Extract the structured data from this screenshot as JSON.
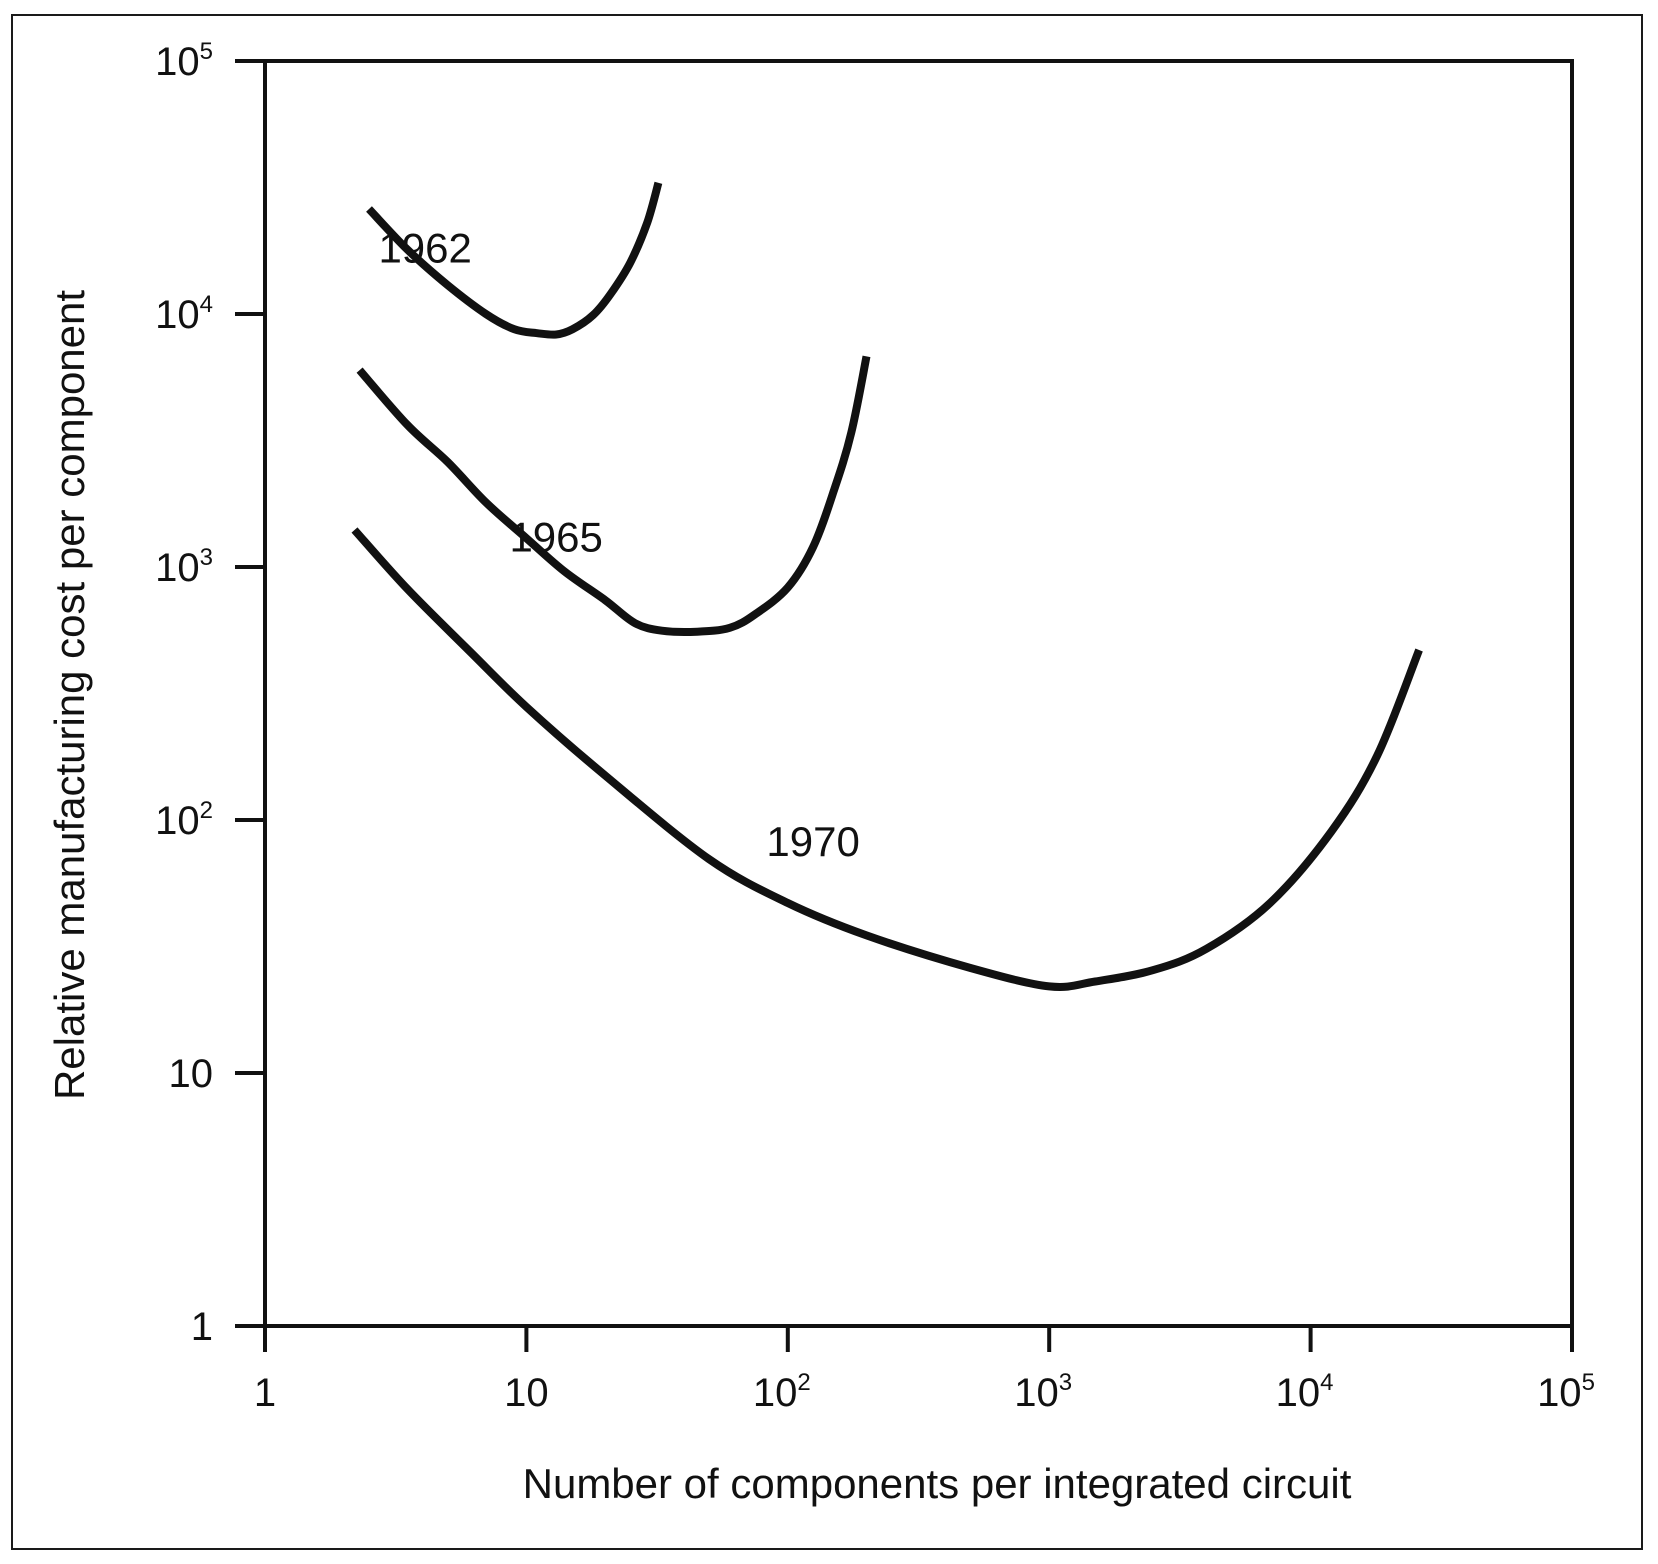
{
  "chart_data": {
    "type": "line",
    "title": "",
    "xlabel": "Number of components per integrated circuit",
    "ylabel": "Relative manufacturing cost per component",
    "x_scale": "log",
    "y_scale": "log",
    "xlim": [
      1,
      100000
    ],
    "ylim": [
      1,
      100000
    ],
    "grid": false,
    "x_ticks": [
      {
        "value": 1,
        "base": "1",
        "sup": ""
      },
      {
        "value": 10,
        "base": "10",
        "sup": ""
      },
      {
        "value": 100,
        "base": "10",
        "sup": "2"
      },
      {
        "value": 1000,
        "base": "10",
        "sup": "3"
      },
      {
        "value": 10000,
        "base": "10",
        "sup": "4"
      },
      {
        "value": 100000,
        "base": "10",
        "sup": "5"
      }
    ],
    "y_ticks": [
      {
        "value": 1,
        "base": "1",
        "sup": ""
      },
      {
        "value": 10,
        "base": "10",
        "sup": ""
      },
      {
        "value": 100,
        "base": "10",
        "sup": "2"
      },
      {
        "value": 1000,
        "base": "10",
        "sup": "3"
      },
      {
        "value": 10000,
        "base": "10",
        "sup": "4"
      },
      {
        "value": 100000,
        "base": "10",
        "sup": "5"
      }
    ],
    "series": [
      {
        "name": "1962",
        "x": [
          2.5,
          3.5,
          5,
          7,
          9,
          11,
          13,
          15,
          18,
          21,
          25,
          29,
          32
        ],
        "y": [
          26000,
          18000,
          13000,
          10000,
          8700,
          8400,
          8300,
          8700,
          9900,
          12000,
          16000,
          23000,
          33000
        ],
        "label_at": {
          "x": 4.1,
          "y": 16000
        }
      },
      {
        "name": "1965",
        "x": [
          2.3,
          3.5,
          5,
          7,
          10,
          14,
          20,
          26,
          33,
          45,
          60,
          75,
          100,
          125,
          150,
          175,
          200
        ],
        "y": [
          6000,
          3650,
          2600,
          1800,
          1300,
          960,
          740,
          600,
          560,
          555,
          575,
          650,
          830,
          1200,
          2000,
          3400,
          6800
        ],
        "label_at": {
          "x": 13,
          "y": 1150
        }
      },
      {
        "name": "1970",
        "x": [
          2.2,
          3.5,
          6,
          10,
          20,
          50,
          100,
          200,
          500,
          1000,
          1500,
          2500,
          4000,
          7000,
          12000,
          18000,
          26000
        ],
        "y": [
          1400,
          820,
          470,
          280,
          150,
          70,
          47,
          35,
          26,
          22,
          23,
          25.5,
          31,
          47,
          90,
          180,
          470
        ],
        "label_at": {
          "x": 125,
          "y": 72
        }
      }
    ]
  }
}
